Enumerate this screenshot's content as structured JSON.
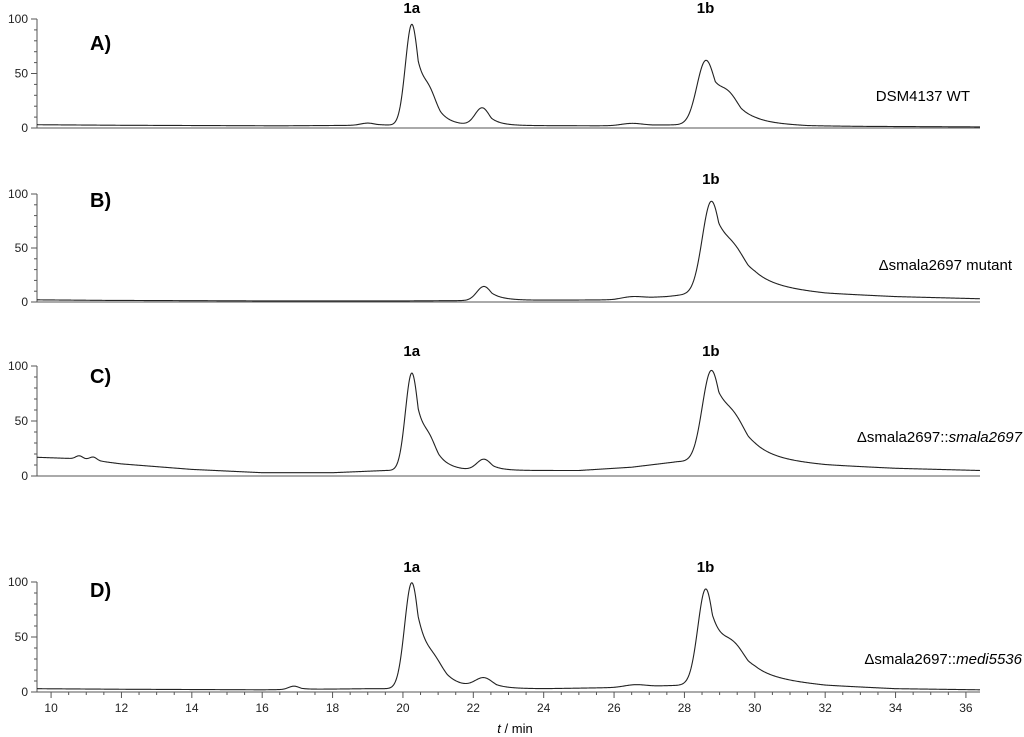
{
  "chart_data": {
    "type": "line",
    "x_axis": {
      "label_var": "t",
      "label_unit": " / min",
      "range": [
        9.6,
        36.4
      ],
      "ticks": [
        10,
        12,
        14,
        16,
        18,
        20,
        22,
        24,
        26,
        28,
        30,
        32,
        34,
        36
      ]
    },
    "y_axis": {
      "range": [
        0,
        100
      ],
      "ticks": [
        0,
        50,
        100
      ]
    },
    "panels": [
      {
        "letter": "A)",
        "sample_plain": "DSM4137 WT",
        "sample_italic": "",
        "peak_labels": [
          {
            "text": "1a",
            "x": 20.25
          },
          {
            "text": "1b",
            "x": 28.6
          }
        ],
        "baseline": [
          [
            9.6,
            3
          ],
          [
            12,
            2.5
          ],
          [
            16.5,
            2
          ],
          [
            19,
            2.5
          ],
          [
            26,
            2
          ],
          [
            30,
            4
          ],
          [
            31.5,
            2
          ],
          [
            33,
            1.5
          ],
          [
            36.4,
            1
          ]
        ],
        "peaks": [
          {
            "center": 20.25,
            "height": 92,
            "sigma": 0.18,
            "tail": 0.35
          },
          {
            "center": 20.75,
            "height": 16,
            "sigma": 0.2,
            "tail": 0.25
          },
          {
            "center": 22.25,
            "height": 16,
            "sigma": 0.2,
            "tail": 0.3
          },
          {
            "center": 28.6,
            "height": 57,
            "sigma": 0.25,
            "tail": 0.45
          },
          {
            "center": 29.25,
            "height": 18,
            "sigma": 0.3,
            "tail": 0.5
          },
          {
            "center": 26.5,
            "height": 2,
            "sigma": 0.3,
            "tail": 0.3
          },
          {
            "center": 19.0,
            "height": 2,
            "sigma": 0.2,
            "tail": 0.3
          }
        ]
      },
      {
        "letter": "B)",
        "sample_plain": "Δsmala2697 mutant",
        "sample_italic": "",
        "peak_labels": [
          {
            "text": "1b",
            "x": 28.75
          }
        ],
        "baseline": [
          [
            9.6,
            2
          ],
          [
            11.5,
            1.5
          ],
          [
            16,
            1
          ],
          [
            20,
            1
          ],
          [
            26,
            2
          ],
          [
            27.5,
            5
          ],
          [
            30,
            14
          ],
          [
            32,
            8
          ],
          [
            34,
            5
          ],
          [
            36.4,
            3
          ]
        ],
        "peaks": [
          {
            "center": 22.3,
            "height": 13,
            "sigma": 0.2,
            "tail": 0.35
          },
          {
            "center": 26.5,
            "height": 2,
            "sigma": 0.3,
            "tail": 0.3
          },
          {
            "center": 28.75,
            "height": 80,
            "sigma": 0.25,
            "tail": 0.55
          },
          {
            "center": 29.4,
            "height": 20,
            "sigma": 0.35,
            "tail": 0.6
          }
        ]
      },
      {
        "letter": "C)",
        "sample_plain": "Δsmala2697::",
        "sample_italic": "smala2697",
        "peak_labels": [
          {
            "text": "1a",
            "x": 20.25
          },
          {
            "text": "1b",
            "x": 28.75
          }
        ],
        "baseline": [
          [
            9.6,
            17
          ],
          [
            10.5,
            16
          ],
          [
            11,
            15
          ],
          [
            12,
            11
          ],
          [
            14,
            6
          ],
          [
            16,
            3
          ],
          [
            18,
            3
          ],
          [
            19.5,
            5
          ],
          [
            22,
            5
          ],
          [
            25,
            5
          ],
          [
            26.5,
            8
          ],
          [
            27.8,
            13
          ],
          [
            30,
            15
          ],
          [
            32,
            10
          ],
          [
            34,
            7
          ],
          [
            36.4,
            5
          ]
        ],
        "peaks": [
          {
            "center": 20.25,
            "height": 88,
            "sigma": 0.18,
            "tail": 0.35
          },
          {
            "center": 20.75,
            "height": 14,
            "sigma": 0.2,
            "tail": 0.3
          },
          {
            "center": 22.3,
            "height": 10,
            "sigma": 0.2,
            "tail": 0.3
          },
          {
            "center": 28.75,
            "height": 78,
            "sigma": 0.25,
            "tail": 0.55
          },
          {
            "center": 29.4,
            "height": 22,
            "sigma": 0.35,
            "tail": 0.6
          },
          {
            "center": 10.8,
            "height": 3,
            "sigma": 0.1,
            "tail": 0.1
          },
          {
            "center": 11.2,
            "height": 3,
            "sigma": 0.1,
            "tail": 0.1
          }
        ]
      },
      {
        "letter": "D)",
        "sample_plain": "Δsmala2697::",
        "sample_italic": "medi5536",
        "peak_labels": [
          {
            "text": "1a",
            "x": 20.25
          },
          {
            "text": "1b",
            "x": 28.6
          }
        ],
        "baseline": [
          [
            9.6,
            3
          ],
          [
            12,
            2.5
          ],
          [
            16,
            2
          ],
          [
            19,
            3
          ],
          [
            24,
            3
          ],
          [
            26,
            4
          ],
          [
            27.8,
            6
          ],
          [
            30,
            12
          ],
          [
            32,
            6
          ],
          [
            34,
            3
          ],
          [
            36.4,
            2
          ]
        ],
        "peaks": [
          {
            "center": 20.25,
            "height": 96,
            "sigma": 0.2,
            "tail": 0.45
          },
          {
            "center": 20.9,
            "height": 10,
            "sigma": 0.25,
            "tail": 0.35
          },
          {
            "center": 22.3,
            "height": 9,
            "sigma": 0.25,
            "tail": 0.35
          },
          {
            "center": 28.6,
            "height": 84,
            "sigma": 0.22,
            "tail": 0.5
          },
          {
            "center": 29.4,
            "height": 20,
            "sigma": 0.35,
            "tail": 0.6
          },
          {
            "center": 16.9,
            "height": 3,
            "sigma": 0.15,
            "tail": 0.2
          },
          {
            "center": 26.6,
            "height": 2,
            "sigma": 0.3,
            "tail": 0.3
          }
        ]
      }
    ]
  }
}
